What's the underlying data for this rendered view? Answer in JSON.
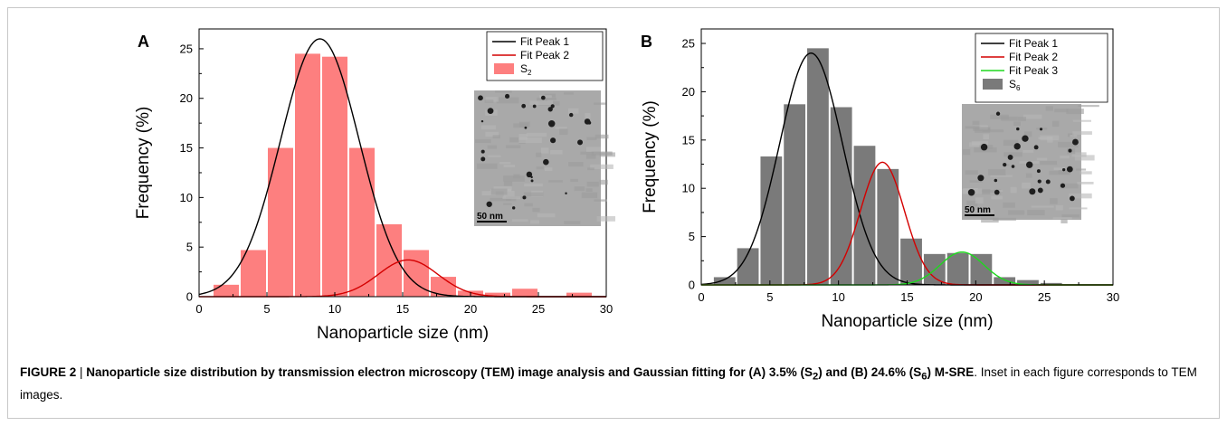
{
  "caption": {
    "figure_label": "FIGURE 2",
    "separator": " | ",
    "bold_part_1": "Nanoparticle size distribution by transmission electron microscopy (TEM) image analysis and Gaussian fitting for (A) 3.5% (S",
    "bold_sub_1": "2",
    "bold_part_2": ") and (B) 24.6% (S",
    "bold_sub_2": "6",
    "bold_part_3": ") M-SRE",
    "normal_part": ". Inset in each figure corresponds to TEM images."
  },
  "colors": {
    "bar_a": "#fd7f7f",
    "bar_b": "#7a7a7a",
    "peak1": "#000000",
    "peak2": "#d40000",
    "peak3": "#1ed81e"
  },
  "chart_data": [
    {
      "type": "bar",
      "panel": "A",
      "xlabel": "Nanoparticle size (nm)",
      "ylabel": "Frequency (%)",
      "xlim": [
        0,
        30
      ],
      "ylim": [
        0,
        27
      ],
      "xticks": [
        0,
        5,
        10,
        15,
        20,
        25,
        30
      ],
      "yticks": [
        0,
        5,
        10,
        15,
        20,
        25
      ],
      "bin_width": 2,
      "bars": {
        "name": "S",
        "name_sub": "2",
        "centers": [
          2,
          4,
          6,
          8,
          10,
          12,
          14,
          16,
          18,
          20,
          22,
          24,
          26,
          28
        ],
        "values": [
          1.2,
          4.7,
          15.0,
          24.5,
          24.2,
          15.0,
          7.3,
          4.7,
          2.0,
          0.6,
          0.4,
          0.8,
          0.0,
          0.4
        ]
      },
      "fits": [
        {
          "name": "Fit Peak 1",
          "color_key": "peak1",
          "amplitude": 26.0,
          "center": 8.9,
          "sigma": 2.9
        },
        {
          "name": "Fit Peak 2",
          "color_key": "peak2",
          "amplitude": 3.7,
          "center": 15.4,
          "sigma": 2.2
        }
      ],
      "legend_position": "top-right",
      "inset": {
        "scale_label": "50 nm"
      }
    },
    {
      "type": "bar",
      "panel": "B",
      "xlabel": "Nanoparticle size (nm)",
      "ylabel": "Frequency (%)",
      "xlim": [
        0,
        30
      ],
      "ylim": [
        0,
        26.5
      ],
      "xticks": [
        0,
        5,
        10,
        15,
        20,
        25,
        30
      ],
      "yticks": [
        0,
        5,
        10,
        15,
        20,
        25
      ],
      "bin_width": 1.7,
      "bars": {
        "name": "S",
        "name_sub": "6",
        "centers": [
          1.7,
          3.4,
          5.1,
          6.8,
          8.5,
          10.2,
          11.9,
          13.6,
          15.3,
          17.0,
          18.7,
          20.4,
          22.1,
          23.8,
          25.5
        ],
        "values": [
          0.8,
          3.8,
          13.3,
          18.7,
          24.5,
          18.4,
          14.4,
          12.0,
          4.8,
          3.2,
          3.3,
          3.2,
          0.8,
          0.5,
          0.2
        ]
      },
      "fits": [
        {
          "name": "Fit Peak 1",
          "color_key": "peak1",
          "amplitude": 24.0,
          "center": 8.0,
          "sigma": 2.3
        },
        {
          "name": "Fit Peak 2",
          "color_key": "peak2",
          "amplitude": 12.7,
          "center": 13.2,
          "sigma": 1.6
        },
        {
          "name": "Fit Peak 3",
          "color_key": "peak3",
          "amplitude": 3.4,
          "center": 19.0,
          "sigma": 1.6
        }
      ],
      "legend_position": "top-right",
      "inset": {
        "scale_label": "50 nm"
      }
    }
  ]
}
